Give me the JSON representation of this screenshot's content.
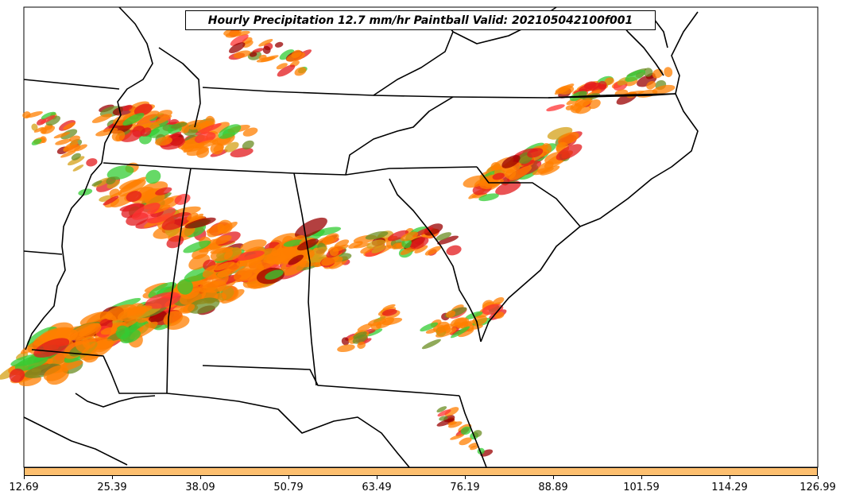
{
  "title": "Hourly Precipitation 12.7 mm/hr Paintball Valid: 202105042100f001",
  "colorbar": {
    "ticks": [
      "12.69",
      "25.39",
      "38.09",
      "50.79",
      "63.49",
      "76.19",
      "88.89",
      "101.59",
      "114.29",
      "126.99"
    ],
    "fill_color": "#fdbf6f"
  },
  "paintball_colors": [
    "#ff7f00",
    "#e31a1c",
    "#33cc33",
    "#6b8e23",
    "#9a0000",
    "#ff3333",
    "#d4a017"
  ]
}
